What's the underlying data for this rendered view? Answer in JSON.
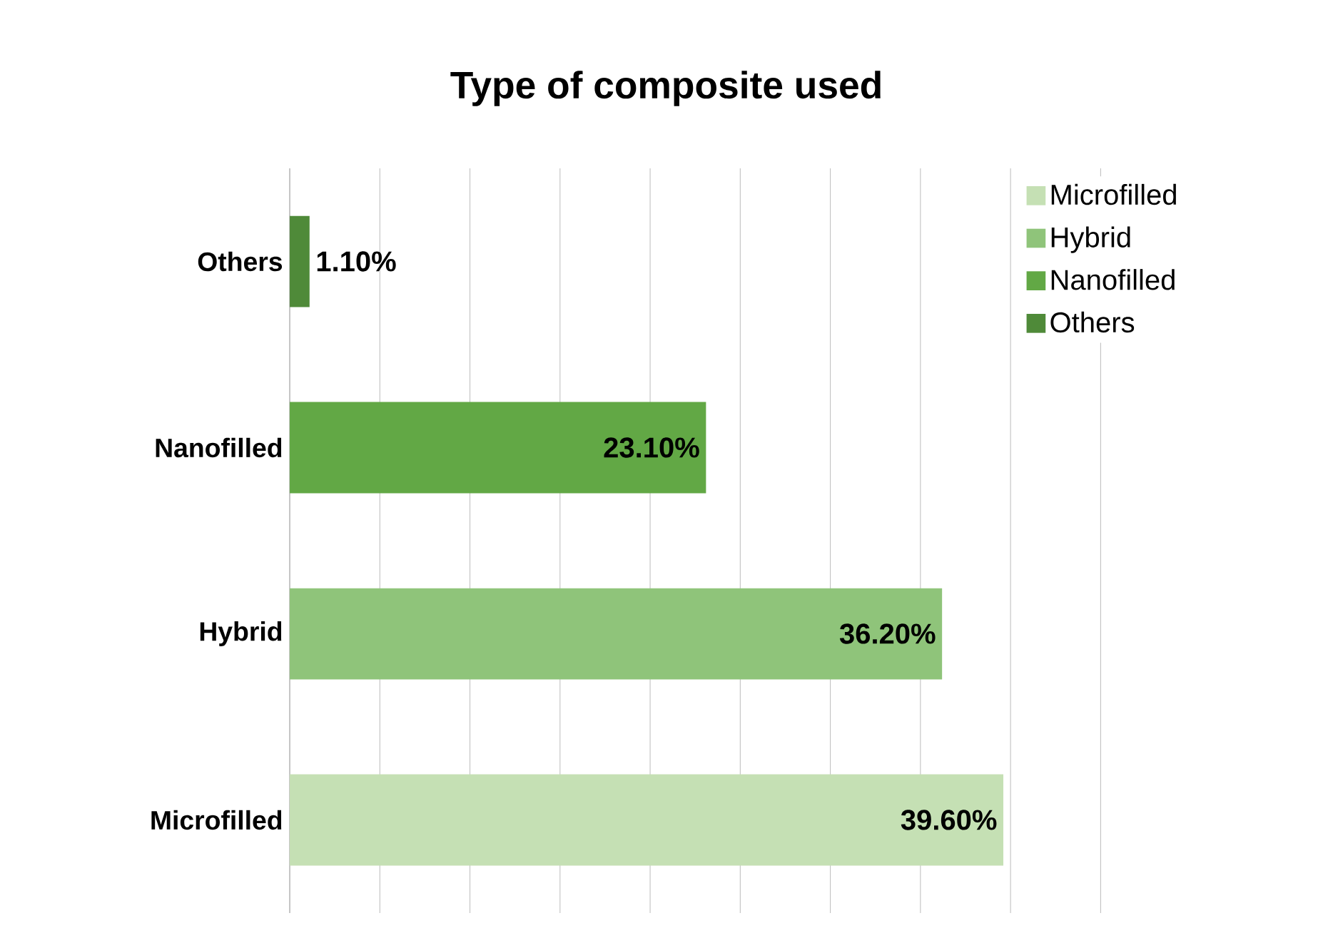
{
  "chart_data": {
    "type": "bar",
    "orientation": "horizontal",
    "title": "Type of composite used",
    "categories": [
      "Others",
      "Nanofilled",
      "Hybrid",
      "Microfilled"
    ],
    "series": [
      {
        "name": "Microfilled",
        "color": "#c5e0b4",
        "values": [
          null,
          null,
          null,
          39.6
        ],
        "value_labels": [
          null,
          null,
          null,
          "39.60%"
        ]
      },
      {
        "name": "Hybrid",
        "color": "#8fc47a",
        "values": [
          null,
          null,
          36.2,
          null
        ],
        "value_labels": [
          null,
          null,
          "36.20%",
          null
        ]
      },
      {
        "name": "Nanofilled",
        "color": "#62a845",
        "values": [
          null,
          23.1,
          null,
          null
        ],
        "value_labels": [
          null,
          "23.10%",
          null,
          null
        ]
      },
      {
        "name": "Others",
        "color": "#4f8a39",
        "values": [
          1.1,
          null,
          null,
          null
        ],
        "value_labels": [
          "1.10%",
          null,
          null,
          null
        ]
      }
    ],
    "tick_labels": "y",
    "grid": "x",
    "legend": "top right"
  }
}
